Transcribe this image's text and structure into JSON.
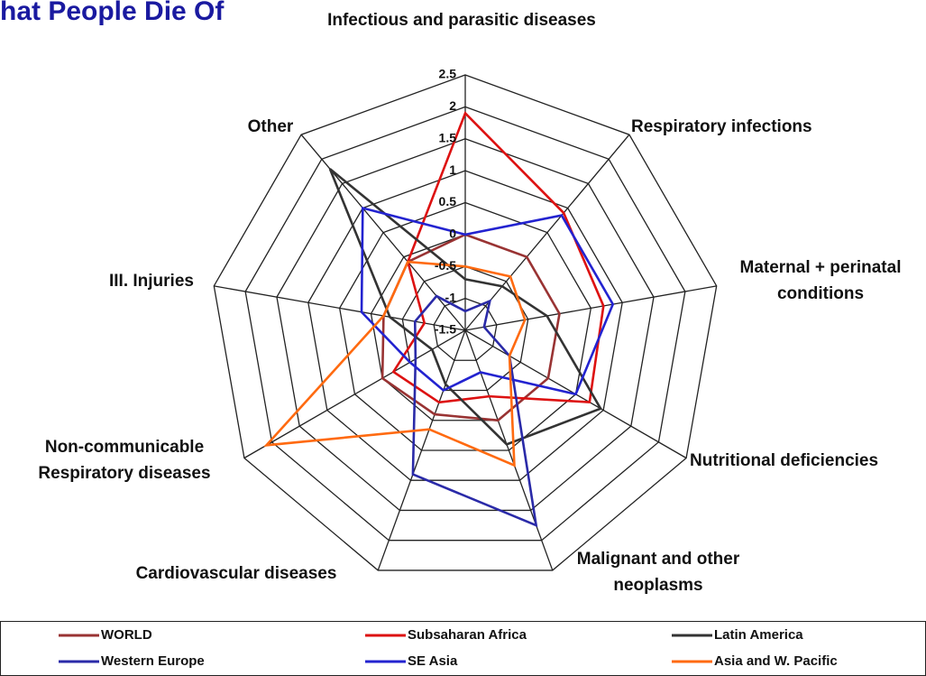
{
  "chart_data": {
    "type": "radar",
    "title": "hat People Die Of",
    "categories": [
      "Infectious and parasitic diseases",
      "Respiratory infections",
      "Maternal + perinatal conditions",
      "Nutritional deficiencies",
      "Malignant and other neoplasms",
      "Cardiovascular diseases",
      "Non-communicable Respiratory diseases",
      "III. Injuries",
      "Other"
    ],
    "ylim": [
      -1.5,
      2.5
    ],
    "yticks": [
      -1.5,
      -1,
      -0.5,
      0,
      0.5,
      1,
      1.5,
      2,
      2.5
    ],
    "grid": true,
    "series": [
      {
        "name": "WORLD",
        "color": "#993333",
        "values": [
          0,
          0,
          0,
          0,
          0,
          -0.1,
          0,
          -0.2,
          -0.1
        ]
      },
      {
        "name": "Subsaharan Africa",
        "color": "#dd1111",
        "values": [
          1.9,
          0.9,
          0.7,
          0.75,
          -0.4,
          -0.3,
          -0.2,
          -0.85,
          -0.1
        ]
      },
      {
        "name": "Latin America",
        "color": "#333333",
        "values": [
          -0.7,
          -0.6,
          -0.2,
          0.95,
          0.4,
          -0.6,
          -0.9,
          -0.3,
          1.8
        ]
      },
      {
        "name": "Western Europe",
        "color": "#2a2aa8",
        "values": [
          -1.2,
          -0.9,
          -1.2,
          -0.7,
          1.75,
          0.9,
          -0.6,
          -0.7,
          -0.8
        ]
      },
      {
        "name": "SE Asia",
        "color": "#2323d0",
        "values": [
          0,
          0.85,
          0.85,
          0.5,
          -0.8,
          -0.5,
          -0.5,
          0.15,
          1.0
        ]
      },
      {
        "name": "Asia and W. Pacific",
        "color": "#ff6a10",
        "values": [
          -0.5,
          -0.4,
          -0.55,
          -0.7,
          0.75,
          0.15,
          2.1,
          -0.2,
          -0.1
        ]
      }
    ]
  }
}
